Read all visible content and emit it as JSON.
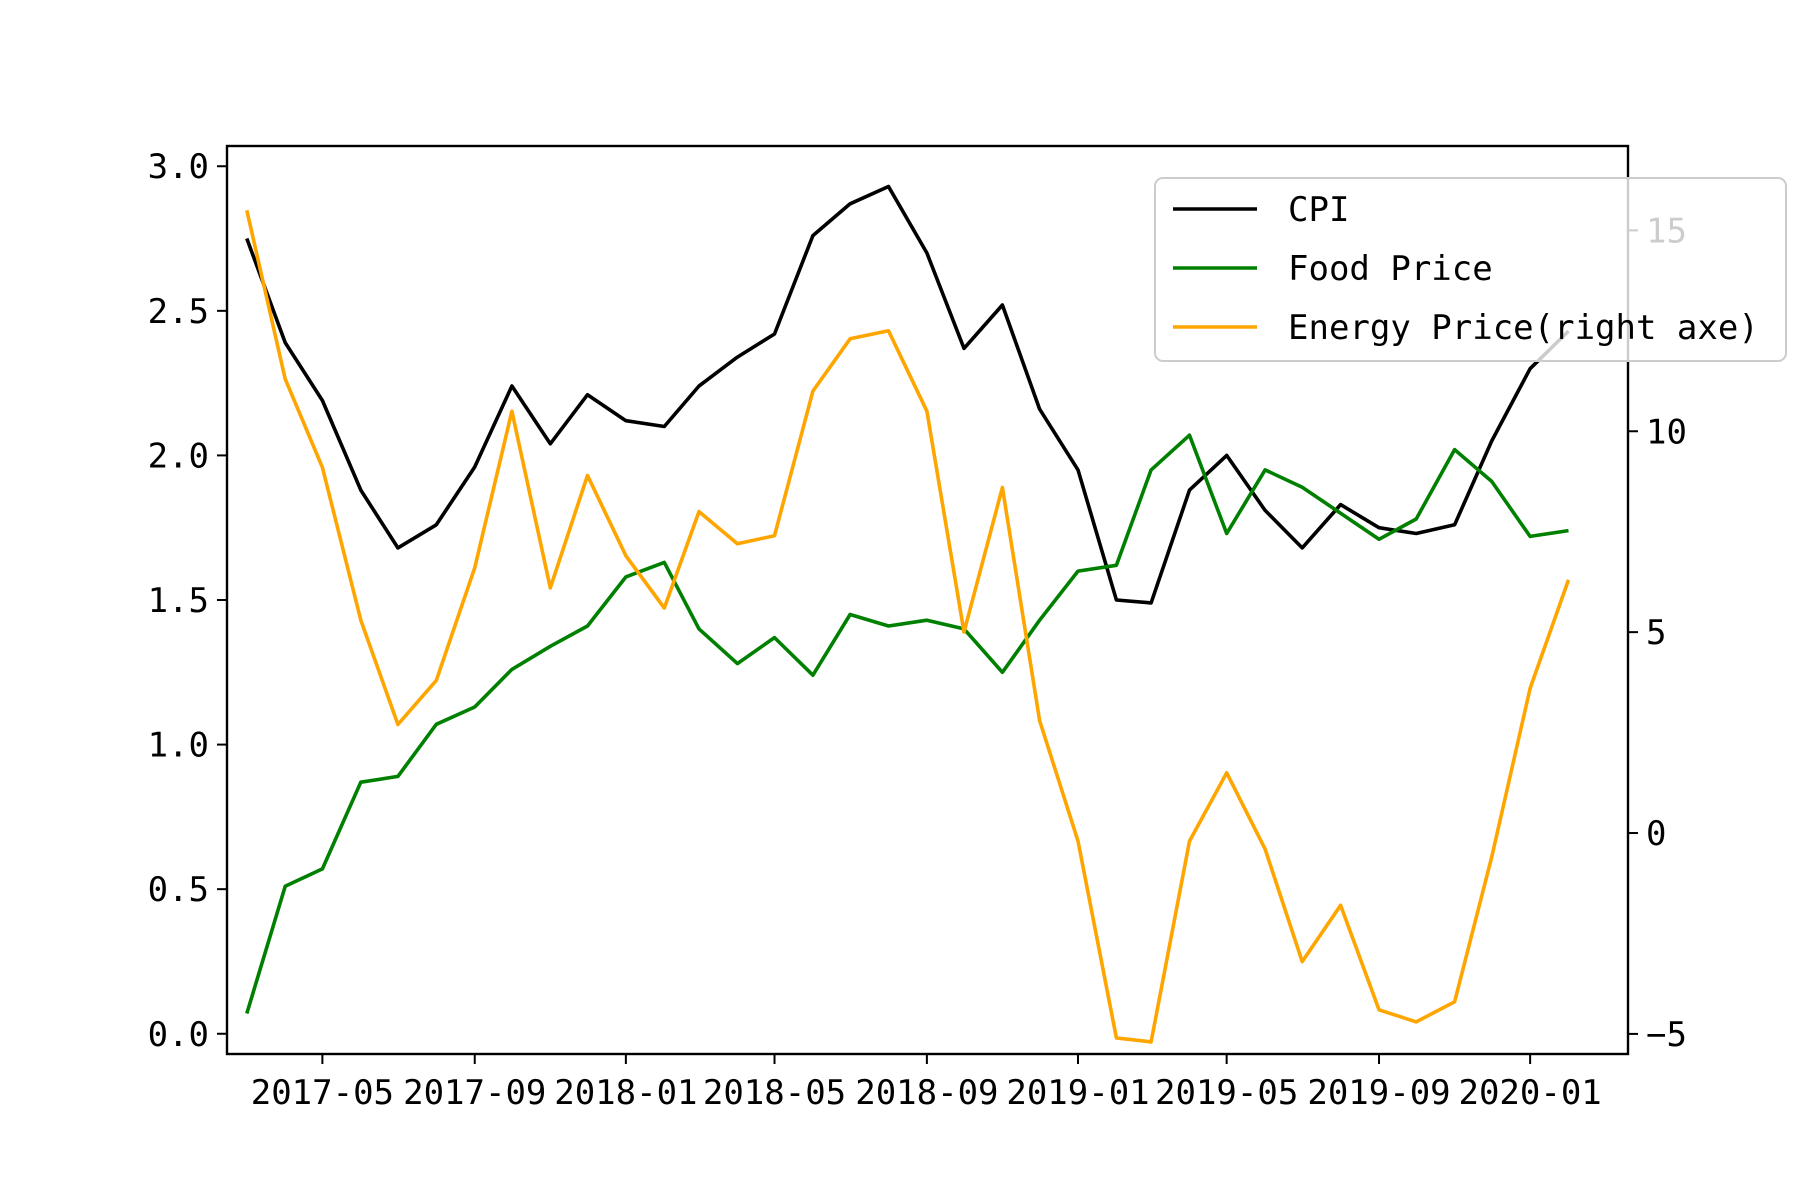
{
  "chart_data": {
    "type": "line",
    "dual_axis": true,
    "title": "",
    "xlabel": "",
    "ylabel": "",
    "y2label": "",
    "x": [
      "2017-03",
      "2017-04",
      "2017-05",
      "2017-06",
      "2017-07",
      "2017-08",
      "2017-09",
      "2017-10",
      "2017-11",
      "2017-12",
      "2018-01",
      "2018-02",
      "2018-03",
      "2018-04",
      "2018-05",
      "2018-06",
      "2018-07",
      "2018-08",
      "2018-09",
      "2018-10",
      "2018-11",
      "2018-12",
      "2019-01",
      "2019-02",
      "2019-03",
      "2019-04",
      "2019-05",
      "2019-06",
      "2019-07",
      "2019-08",
      "2019-09",
      "2019-10",
      "2019-11",
      "2019-12",
      "2020-01",
      "2020-02"
    ],
    "xlim": [
      "2017-02-13",
      "2020-03-20"
    ],
    "xticks": [
      "2017-05",
      "2017-09",
      "2018-01",
      "2018-05",
      "2018-09",
      "2019-01",
      "2019-05",
      "2019-09",
      "2020-01"
    ],
    "ylim": [
      -0.07,
      3.07
    ],
    "yticks": [
      "0.0",
      "0.5",
      "1.0",
      "1.5",
      "2.0",
      "2.5",
      "3.0"
    ],
    "y2lim": [
      -5.5,
      17.1
    ],
    "y2ticks": [
      "−5",
      "0",
      "5",
      "10",
      "15"
    ],
    "series": [
      {
        "name": "CPI",
        "axis": "left",
        "color": "#000000",
        "values": [
          2.75,
          2.39,
          2.19,
          1.88,
          1.68,
          1.76,
          1.96,
          2.24,
          2.04,
          2.21,
          2.12,
          2.1,
          2.24,
          2.34,
          2.42,
          2.76,
          2.87,
          2.93,
          2.7,
          2.37,
          2.52,
          2.16,
          1.95,
          1.5,
          1.49,
          1.88,
          2.0,
          1.81,
          1.68,
          1.83,
          1.75,
          1.73,
          1.76,
          2.05,
          2.3,
          2.43
        ]
      },
      {
        "name": "Food Price",
        "axis": "left",
        "color": "#008000",
        "values": [
          0.07,
          0.51,
          0.57,
          0.87,
          0.89,
          1.07,
          1.13,
          1.26,
          1.34,
          1.41,
          1.58,
          1.63,
          1.4,
          1.28,
          1.37,
          1.24,
          1.45,
          1.41,
          1.43,
          1.4,
          1.25,
          1.43,
          1.6,
          1.62,
          1.95,
          2.07,
          1.73,
          1.95,
          1.89,
          1.8,
          1.71,
          1.78,
          2.02,
          1.91,
          1.72,
          1.74
        ]
      },
      {
        "name": "Energy Price(right axe)",
        "axis": "right",
        "color": "#FFA500",
        "values": [
          15.5,
          11.3,
          9.1,
          5.3,
          2.7,
          3.8,
          6.6,
          10.5,
          6.1,
          8.9,
          6.9,
          5.6,
          8.0,
          7.2,
          7.4,
          11.0,
          12.3,
          12.5,
          10.5,
          5.0,
          8.6,
          2.8,
          -0.2,
          -5.1,
          -5.2,
          -0.2,
          1.5,
          -0.4,
          -3.2,
          -1.8,
          -4.4,
          -4.7,
          -4.2,
          -0.6,
          3.6,
          6.3
        ]
      }
    ],
    "legend_position": "upper right",
    "grid": false
  }
}
